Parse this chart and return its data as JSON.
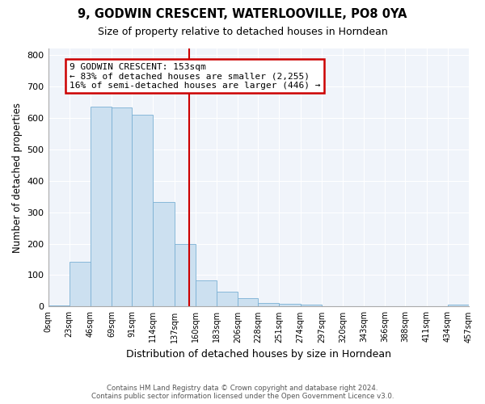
{
  "title": "9, GODWIN CRESCENT, WATERLOOVILLE, PO8 0YA",
  "subtitle": "Size of property relative to detached houses in Horndean",
  "xlabel": "Distribution of detached houses by size in Horndean",
  "ylabel": "Number of detached properties",
  "bin_edges": [
    0,
    23,
    46,
    69,
    91,
    114,
    137,
    160,
    183,
    206,
    228,
    251,
    274,
    297,
    320,
    343,
    366,
    388,
    411,
    434,
    457
  ],
  "bin_heights": [
    3,
    143,
    635,
    632,
    610,
    332,
    200,
    84,
    47,
    26,
    11,
    10,
    5,
    0,
    0,
    0,
    0,
    0,
    0,
    5
  ],
  "bar_facecolor": "#cce0f0",
  "bar_edgecolor": "#7ab0d4",
  "vline_x": 153,
  "vline_color": "#cc0000",
  "annotation_text": "9 GODWIN CRESCENT: 153sqm\n← 83% of detached houses are smaller (2,255)\n16% of semi-detached houses are larger (446) →",
  "annotation_box_edgecolor": "#cc0000",
  "annotation_box_facecolor": "white",
  "ylim": [
    0,
    820
  ],
  "yticks": [
    0,
    100,
    200,
    300,
    400,
    500,
    600,
    700,
    800
  ],
  "tick_labels": [
    "0sqm",
    "23sqm",
    "46sqm",
    "69sqm",
    "91sqm",
    "114sqm",
    "137sqm",
    "160sqm",
    "183sqm",
    "206sqm",
    "228sqm",
    "251sqm",
    "274sqm",
    "297sqm",
    "320sqm",
    "343sqm",
    "366sqm",
    "388sqm",
    "411sqm",
    "434sqm",
    "457sqm"
  ],
  "footer_text": "Contains HM Land Registry data © Crown copyright and database right 2024.\nContains public sector information licensed under the Open Government Licence v3.0.",
  "plot_bg_color": "#f0f4fa",
  "fig_bg_color": "#ffffff"
}
